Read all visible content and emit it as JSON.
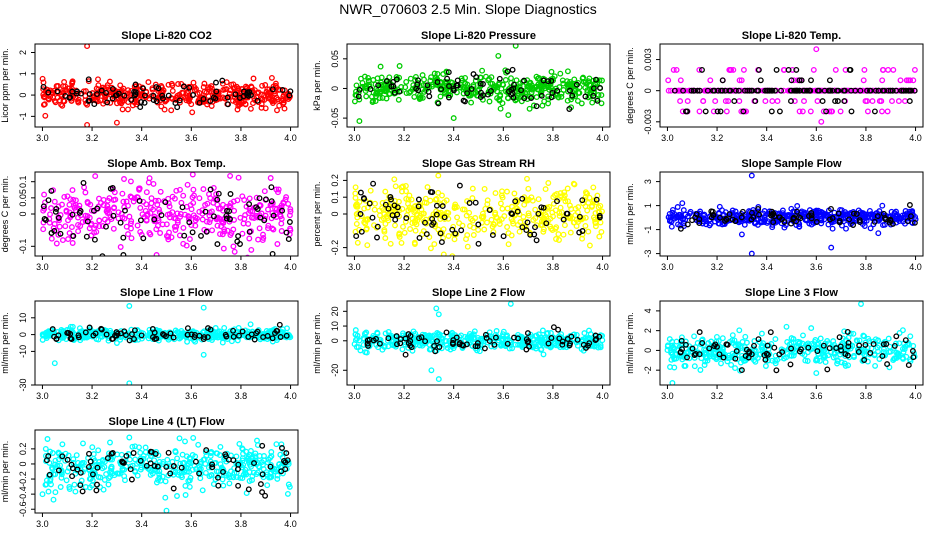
{
  "figure": {
    "title": "NWR_070603  2.5 Min. Slope Diagnostics"
  },
  "chart_data": [
    {
      "type": "scatter",
      "title": "Slope Li-820 CO2",
      "xlabel": "",
      "ylabel": "Licor ppm per min.",
      "xlim": [
        2.97,
        4.03
      ],
      "ylim": [
        -1.5,
        2.4
      ],
      "xticks": [
        3.0,
        3.2,
        3.4,
        3.6,
        3.8,
        4.0
      ],
      "yticks": [
        -1,
        0,
        1,
        2
      ],
      "center": 0.0,
      "sd": 0.28,
      "outliers": [
        [
          3.18,
          2.3
        ],
        [
          3.18,
          -1.4
        ],
        [
          3.3,
          -1.3
        ],
        [
          3.12,
          0.6
        ]
      ],
      "series": [
        {
          "color": "#ff0000",
          "n": 420
        },
        {
          "color": "#000000",
          "n": 75
        }
      ]
    },
    {
      "type": "scatter",
      "title": "Slope Li-820 Pressure",
      "xlabel": "",
      "ylabel": "kPa per min.",
      "xlim": [
        2.97,
        4.03
      ],
      "ylim": [
        -0.065,
        0.075
      ],
      "xticks": [
        3.0,
        3.2,
        3.4,
        3.6,
        3.8,
        4.0
      ],
      "yticks": [
        -0.05,
        0.0,
        0.05
      ],
      "center": 0.0,
      "sd": 0.012,
      "outliers": [
        [
          3.65,
          0.072
        ],
        [
          3.58,
          0.055
        ],
        [
          3.02,
          -0.055
        ],
        [
          3.4,
          -0.05
        ],
        [
          3.62,
          -0.045
        ]
      ],
      "series": [
        {
          "color": "#00cc00",
          "n": 420
        },
        {
          "color": "#000000",
          "n": 75
        }
      ]
    },
    {
      "type": "scatter",
      "title": "Slope Li-820 Temp.",
      "xlabel": "",
      "ylabel": "degrees C per min.",
      "xlim": [
        2.97,
        4.03
      ],
      "ylim": [
        -0.0035,
        0.0045
      ],
      "xticks": [
        3.0,
        3.2,
        3.4,
        3.6,
        3.8,
        4.0
      ],
      "yticks": [
        -0.003,
        0.0,
        0.003
      ],
      "center": 0.0,
      "sd": 0.0,
      "levels": [
        -0.002,
        -0.001,
        0.0,
        0.001,
        0.002
      ],
      "outliers": [
        [
          3.6,
          0.004
        ],
        [
          3.62,
          -0.003
        ]
      ],
      "series": [
        {
          "color": "#ff00ff",
          "n": 260
        },
        {
          "color": "#000000",
          "n": 120
        }
      ]
    },
    {
      "type": "scatter",
      "title": "Slope Amb. Box Temp.",
      "xlabel": "",
      "ylabel": "degrees C per min.",
      "xlim": [
        2.97,
        4.03
      ],
      "ylim": [
        -0.13,
        0.13
      ],
      "xticks": [
        3.0,
        3.2,
        3.4,
        3.6,
        3.8,
        4.0
      ],
      "yticks": [
        -0.1,
        0.0,
        0.05,
        0.1
      ],
      "center": 0.0,
      "sd": 0.045,
      "outliers": [],
      "series": [
        {
          "color": "#ff00ff",
          "n": 380
        },
        {
          "color": "#000000",
          "n": 75
        }
      ]
    },
    {
      "type": "scatter",
      "title": "Slope Gas Stream RH",
      "xlabel": "",
      "ylabel": "percent per min.",
      "xlim": [
        2.97,
        4.03
      ],
      "ylim": [
        -0.25,
        0.25
      ],
      "xticks": [
        3.0,
        3.2,
        3.4,
        3.6,
        3.8,
        4.0
      ],
      "yticks": [
        -0.2,
        0.0,
        0.1,
        0.2
      ],
      "center": 0.0,
      "sd": 0.08,
      "outliers": [],
      "series": [
        {
          "color": "#ffff00",
          "n": 400
        },
        {
          "color": "#000000",
          "n": 75
        }
      ]
    },
    {
      "type": "scatter",
      "title": "Slope Sample Flow",
      "xlabel": "",
      "ylabel": "ml/min per min.",
      "xlim": [
        2.97,
        4.03
      ],
      "ylim": [
        -3.2,
        3.8
      ],
      "xticks": [
        3.0,
        3.2,
        3.4,
        3.6,
        3.8,
        4.0
      ],
      "yticks": [
        -3,
        -1,
        1,
        3
      ],
      "center": 0.0,
      "sd": 0.35,
      "outliers": [
        [
          3.34,
          3.5
        ],
        [
          3.34,
          -3.0
        ],
        [
          3.66,
          -2.5
        ],
        [
          3.3,
          -1.4
        ],
        [
          3.06,
          1.2
        ],
        [
          3.85,
          -1.3
        ]
      ],
      "series": [
        {
          "color": "#0000ff",
          "n": 420
        },
        {
          "color": "#000000",
          "n": 75
        }
      ]
    },
    {
      "type": "scatter",
      "title": "Slope Line 1 Flow",
      "xlabel": "",
      "ylabel": "ml/min per min.",
      "xlim": [
        2.97,
        4.03
      ],
      "ylim": [
        -30,
        20
      ],
      "xticks": [
        3.0,
        3.2,
        3.4,
        3.6,
        3.8,
        4.0
      ],
      "yticks": [
        -30,
        -10,
        0,
        10
      ],
      "center": 0.0,
      "sd": 1.6,
      "outliers": [
        [
          3.35,
          17
        ],
        [
          3.35,
          -29
        ],
        [
          3.05,
          -17
        ],
        [
          3.65,
          16
        ],
        [
          3.65,
          -12
        ],
        [
          3.3,
          -5
        ]
      ],
      "series": [
        {
          "color": "#00ffff",
          "n": 420
        },
        {
          "color": "#000000",
          "n": 75
        }
      ]
    },
    {
      "type": "scatter",
      "title": "Slope Line 2 Flow",
      "xlabel": "",
      "ylabel": "ml/min per min.",
      "xlim": [
        2.97,
        4.03
      ],
      "ylim": [
        -30,
        27
      ],
      "xticks": [
        3.0,
        3.2,
        3.4,
        3.6,
        3.8,
        4.0
      ],
      "yticks": [
        -20,
        0,
        10,
        20
      ],
      "center": 0.0,
      "sd": 3.0,
      "outliers": [
        [
          3.33,
          22
        ],
        [
          3.34,
          18
        ],
        [
          3.34,
          -26
        ],
        [
          3.31,
          -20
        ],
        [
          3.63,
          25
        ],
        [
          3.05,
          -8
        ]
      ],
      "series": [
        {
          "color": "#00ffff",
          "n": 420
        },
        {
          "color": "#000000",
          "n": 75
        }
      ]
    },
    {
      "type": "scatter",
      "title": "Slope Line 3 Flow",
      "xlabel": "",
      "ylabel": "ml/min per min.",
      "xlim": [
        2.97,
        4.03
      ],
      "ylim": [
        -3.5,
        5.0
      ],
      "xticks": [
        3.0,
        3.2,
        3.4,
        3.6,
        3.8,
        4.0
      ],
      "yticks": [
        -2,
        0,
        2,
        4
      ],
      "center": 0.0,
      "sd": 0.75,
      "outliers": [
        [
          3.02,
          -3.3
        ],
        [
          3.78,
          4.7
        ],
        [
          3.6,
          -2.3
        ]
      ],
      "series": [
        {
          "color": "#00ffff",
          "n": 420
        },
        {
          "color": "#000000",
          "n": 75
        }
      ]
    },
    {
      "type": "scatter",
      "title": "Slope Line 4 (LT) Flow",
      "xlabel": "",
      "ylabel": "ml/min per min.",
      "xlim": [
        2.97,
        4.03
      ],
      "ylim": [
        -0.65,
        0.45
      ],
      "xticks": [
        3.0,
        3.2,
        3.4,
        3.6,
        3.8,
        4.0
      ],
      "yticks": [
        -0.6,
        -0.4,
        -0.2,
        0.0,
        0.2
      ],
      "center": -0.05,
      "sd": 0.14,
      "outliers": [
        [
          3.5,
          -0.62
        ],
        [
          3.35,
          0.35
        ]
      ],
      "series": [
        {
          "color": "#00ffff",
          "n": 420
        },
        {
          "color": "#000000",
          "n": 75
        }
      ]
    }
  ]
}
